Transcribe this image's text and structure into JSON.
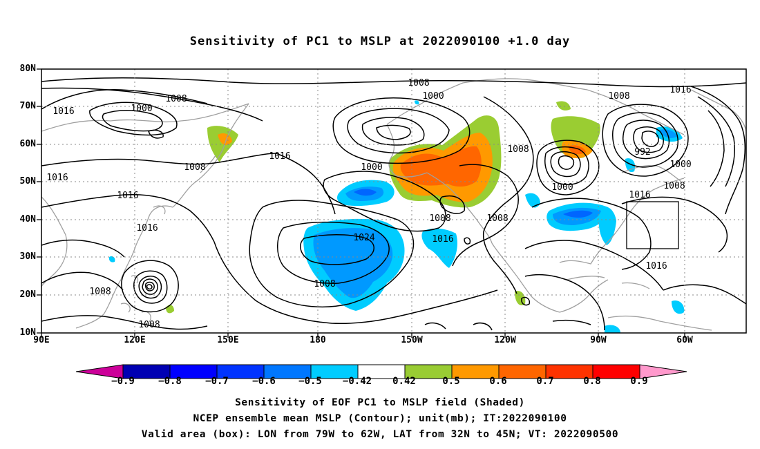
{
  "title": "Sensitivity of PC1 to MSLP at 2022090100 +1.0 day",
  "map": {
    "lat_labels": [
      "80N",
      "70N",
      "60N",
      "50N",
      "40N",
      "30N",
      "20N",
      "10N"
    ],
    "lon_labels": [
      "90E",
      "120E",
      "150E",
      "180",
      "150W",
      "120W",
      "90W",
      "60W"
    ],
    "contour_labels": [
      "1008",
      "1016",
      "1000",
      "1008",
      "1000",
      "1016",
      "1008",
      "1016",
      "1000",
      "1008",
      "1016",
      "1016",
      "1008",
      "1024",
      "1016",
      "1008",
      "1008",
      "1016",
      "1008",
      "992",
      "1000",
      "1008",
      "1000",
      "1016",
      "1016",
      "1008",
      "1008"
    ],
    "box_label": "",
    "colors": {
      "contour": "#000000",
      "coast": "#a0a0a0",
      "pos_050": "#9acd32",
      "pos_060": "#ff9900",
      "pos_070": "#ff6600",
      "neg_042": "#00ccff",
      "neg_050": "#0099ff",
      "neg_060": "#0066ff"
    }
  },
  "colorbar": {
    "labels": [
      "−0.9",
      "−0.8",
      "−0.7",
      "−0.6",
      "−0.5",
      "−0.42",
      "0.42",
      "0.5",
      "0.6",
      "0.7",
      "0.8",
      "0.9"
    ],
    "colors": [
      "#cc0099",
      "#0000b3",
      "#0000ff",
      "#0033ff",
      "#0077ff",
      "#00ccff",
      "#ffffff",
      "#99cc33",
      "#ff9900",
      "#ff6600",
      "#ff3300",
      "#ff0000",
      "#ff99cc"
    ]
  },
  "caption": {
    "line1": "Sensitivity of EOF PC1 to MSLP field (Shaded)",
    "line2": "NCEP ensemble mean MSLP (Contour); unit(mb); IT:2022090100",
    "line3": "Valid area (box): LON from 79W to 62W, LAT from 32N to 45N; VT: 2022090500"
  }
}
